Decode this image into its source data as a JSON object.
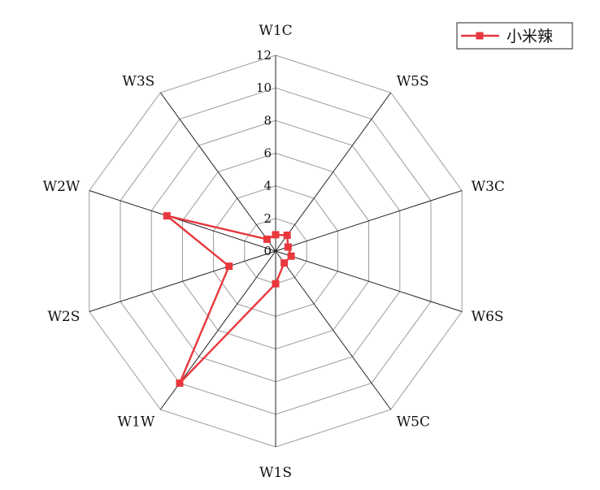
{
  "chart_data": {
    "type": "radar",
    "title": "",
    "axes": [
      "W1C",
      "W5S",
      "W3C",
      "W6S",
      "W5C",
      "W1S",
      "W1W",
      "W2S",
      "W2W",
      "W3S"
    ],
    "rlim": [
      0,
      12
    ],
    "ticks": [
      "0",
      "2",
      "4",
      "6",
      "8",
      "10",
      "12"
    ],
    "tick_values": [
      0,
      2,
      4,
      6,
      8,
      10,
      12
    ],
    "grid": true,
    "legend": "top-right",
    "series": [
      {
        "name": "小米辣",
        "color": "#e8383d",
        "marker": "square",
        "values": [
          1.0,
          1.2,
          0.8,
          1.0,
          0.9,
          2.0,
          10.0,
          3.0,
          7.0,
          0.9
        ]
      }
    ]
  }
}
